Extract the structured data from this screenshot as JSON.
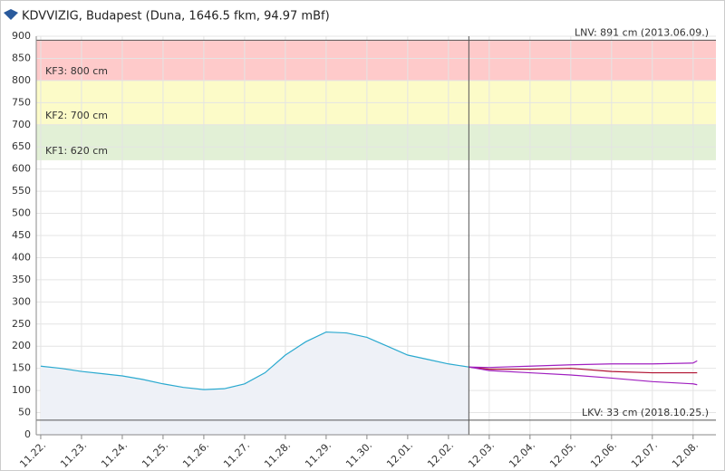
{
  "chart_data": {
    "type": "line",
    "title": "KDVVIZIG, Budapest (Duna, 1646.5 fkm, 94.97 mBf)",
    "ylim": [
      0,
      900
    ],
    "yticks": [
      0,
      50,
      100,
      150,
      200,
      250,
      300,
      350,
      400,
      450,
      500,
      550,
      600,
      650,
      700,
      750,
      800,
      850,
      900
    ],
    "xlim": [
      -0.11,
      16.56
    ],
    "xticks": [
      {
        "value": 0,
        "label": "11.22."
      },
      {
        "value": 1,
        "label": "11.23."
      },
      {
        "value": 2,
        "label": "11.24."
      },
      {
        "value": 3,
        "label": "11.25."
      },
      {
        "value": 4,
        "label": "11.26."
      },
      {
        "value": 5,
        "label": "11.27."
      },
      {
        "value": 6,
        "label": "11.28."
      },
      {
        "value": 7,
        "label": "11.29."
      },
      {
        "value": 8,
        "label": "11.30."
      },
      {
        "value": 9,
        "label": "12.01."
      },
      {
        "value": 10,
        "label": "12.02."
      },
      {
        "value": 11,
        "label": "12.03."
      },
      {
        "value": 12,
        "label": "12.04."
      },
      {
        "value": 13,
        "label": "12.05."
      },
      {
        "value": 14,
        "label": "12.06."
      },
      {
        "value": 15,
        "label": "12.07."
      },
      {
        "value": 16,
        "label": "12.08."
      }
    ],
    "grid": true,
    "now": 10.5,
    "thresholds": {
      "kf1": {
        "label": "KF1: 620 cm",
        "value": 620,
        "color": "#e2f0d6"
      },
      "kf2": {
        "label": "KF2: 700 cm",
        "value": 700,
        "color": "#fcfbc8"
      },
      "kf3": {
        "label": "KF3: 800 cm",
        "value": 800,
        "color": "#fecaca"
      },
      "lnv": {
        "label": "LNV: 891 cm (2013.06.09.)",
        "value": 891
      },
      "lkv": {
        "label": "LKV: 33 cm (2018.10.25.)",
        "value": 33
      }
    },
    "series": [
      {
        "color": "#2aa9cf",
        "area": true,
        "x": [
          0,
          0.5,
          1,
          1.5,
          2,
          2.5,
          3,
          3.5,
          4,
          4.5,
          5,
          5.5,
          6,
          6.5,
          7,
          7.5,
          8,
          8.5,
          9,
          9.5,
          10,
          10.5
        ],
        "values": [
          155,
          150,
          143,
          138,
          133,
          125,
          115,
          107,
          102,
          104,
          115,
          140,
          180,
          210,
          232,
          230,
          220,
          200,
          180,
          170,
          160,
          153
        ]
      },
      {
        "color": "#b01030",
        "x": [
          10.5,
          11,
          12,
          13,
          14,
          15,
          16,
          16.1
        ],
        "values": [
          153,
          148,
          148,
          150,
          143,
          140,
          140,
          140
        ]
      },
      {
        "color": "#a020c0",
        "x": [
          10.5,
          11,
          12,
          13,
          14,
          15,
          16,
          16.1
        ],
        "values": [
          153,
          152,
          155,
          158,
          160,
          160,
          162,
          167
        ]
      },
      {
        "color": "#a020c0",
        "x": [
          10.5,
          11,
          12,
          13,
          14,
          15,
          16,
          16.1
        ],
        "values": [
          153,
          145,
          140,
          135,
          128,
          120,
          115,
          113
        ]
      }
    ]
  }
}
